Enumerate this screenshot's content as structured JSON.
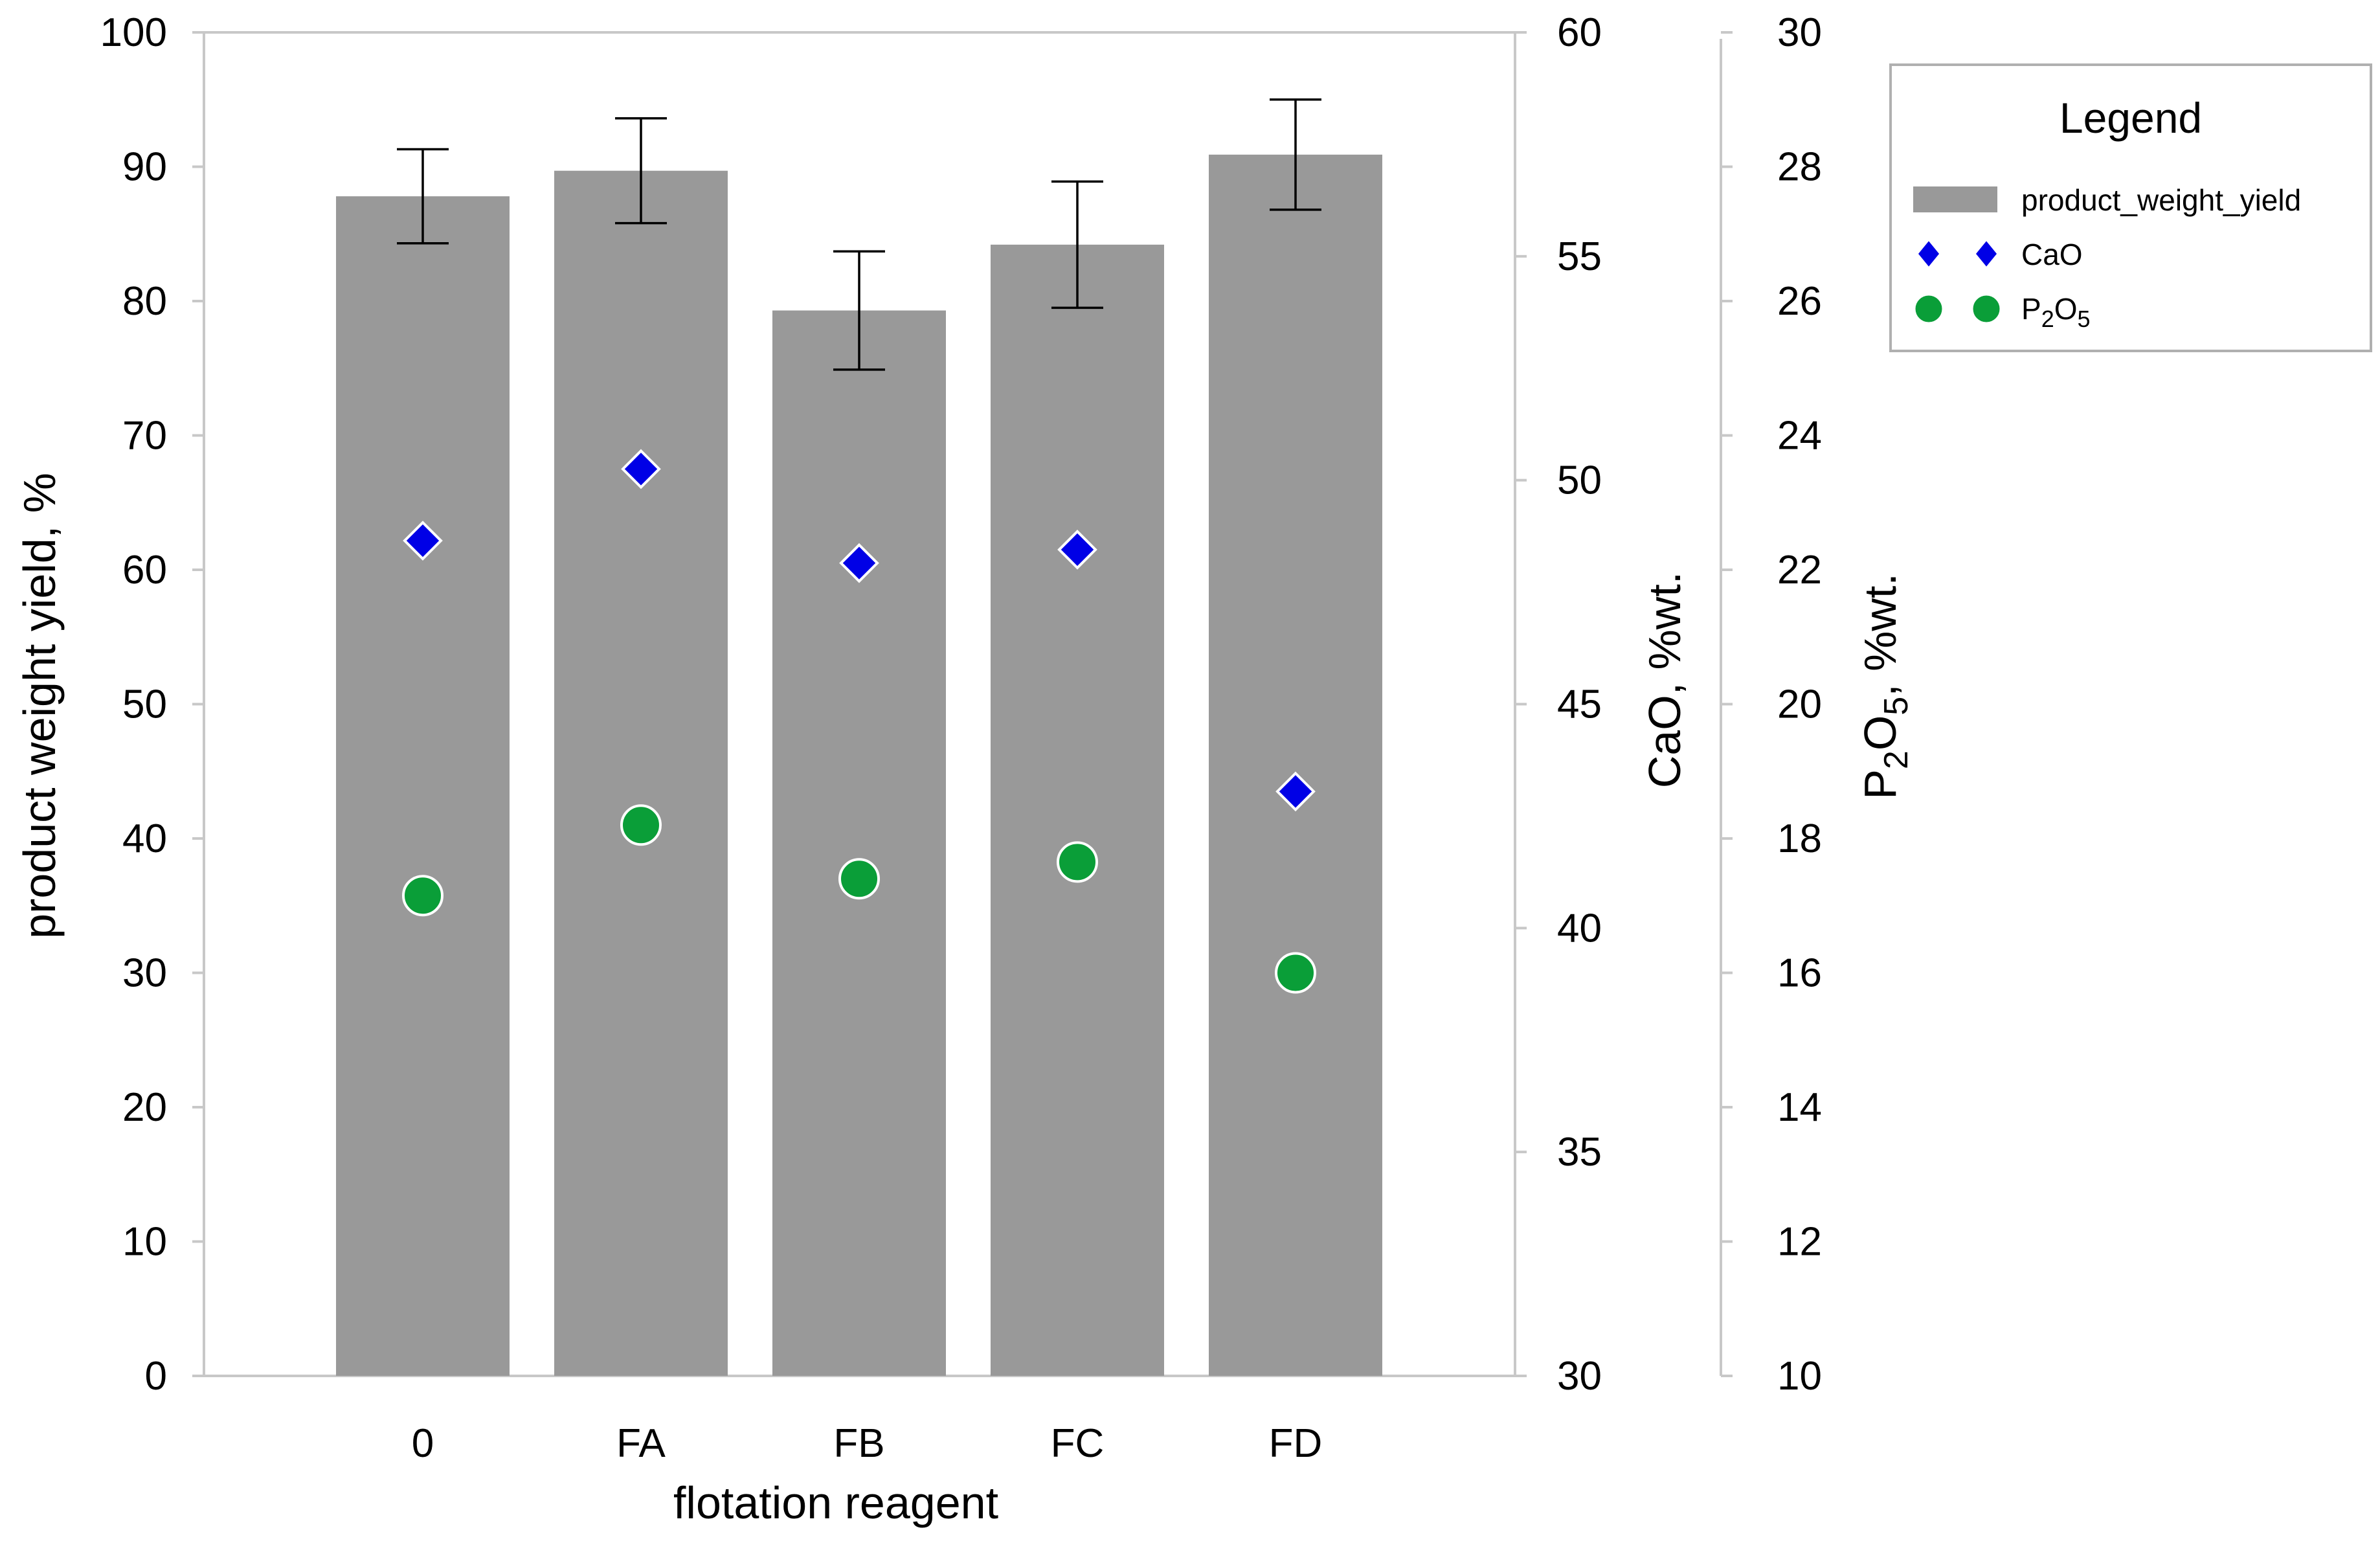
{
  "chart_data": {
    "type": "bar",
    "title": "",
    "xlabel": "flotation reagent",
    "categories": [
      "0",
      "FA",
      "FB",
      "FC",
      "FD"
    ],
    "series": [
      {
        "name": "product_weight_yield",
        "kind": "bar",
        "axis": "left",
        "color": "#999999",
        "values": [
          87.8,
          89.7,
          79.3,
          84.2,
          90.9
        ],
        "error": [
          3.5,
          3.9,
          4.4,
          4.7,
          4.1
        ]
      },
      {
        "name": "CaO",
        "kind": "marker-diamond",
        "axis": "right1",
        "color": "#0000e6",
        "values": [
          48.65,
          50.25,
          48.15,
          48.45,
          43.05
        ]
      },
      {
        "name": "P2O5",
        "kind": "marker-circle",
        "axis": "right2",
        "color": "#0a9e38",
        "values": [
          17.15,
          18.2,
          17.4,
          17.65,
          16.0
        ]
      }
    ],
    "axes": {
      "left": {
        "label": "product weight yield, %",
        "min": 0,
        "max": 100,
        "ticks": [
          "0",
          "10",
          "20",
          "30",
          "40",
          "50",
          "60",
          "70",
          "80",
          "90",
          "100"
        ]
      },
      "right1": {
        "label": "CaO, %wt.",
        "min": 30,
        "max": 60,
        "ticks": [
          "30",
          "35",
          "40",
          "45",
          "50",
          "55",
          "60"
        ]
      },
      "right2": {
        "label_main": "P",
        "label_sub1": "2",
        "label_mid": "O",
        "label_sub2": "5",
        "label_tail": ", %wt.",
        "min": 10,
        "max": 30,
        "ticks": [
          "10",
          "12",
          "14",
          "16",
          "18",
          "20",
          "22",
          "24",
          "26",
          "28",
          "30"
        ]
      }
    },
    "legend": {
      "title": "Legend",
      "position": "top-right",
      "items": [
        {
          "label": "product_weight_yield"
        },
        {
          "label": "CaO"
        },
        {
          "label_main": "P",
          "label_sub1": "2",
          "label_mid": "O",
          "label_sub2": "5"
        }
      ]
    },
    "grid": false
  }
}
